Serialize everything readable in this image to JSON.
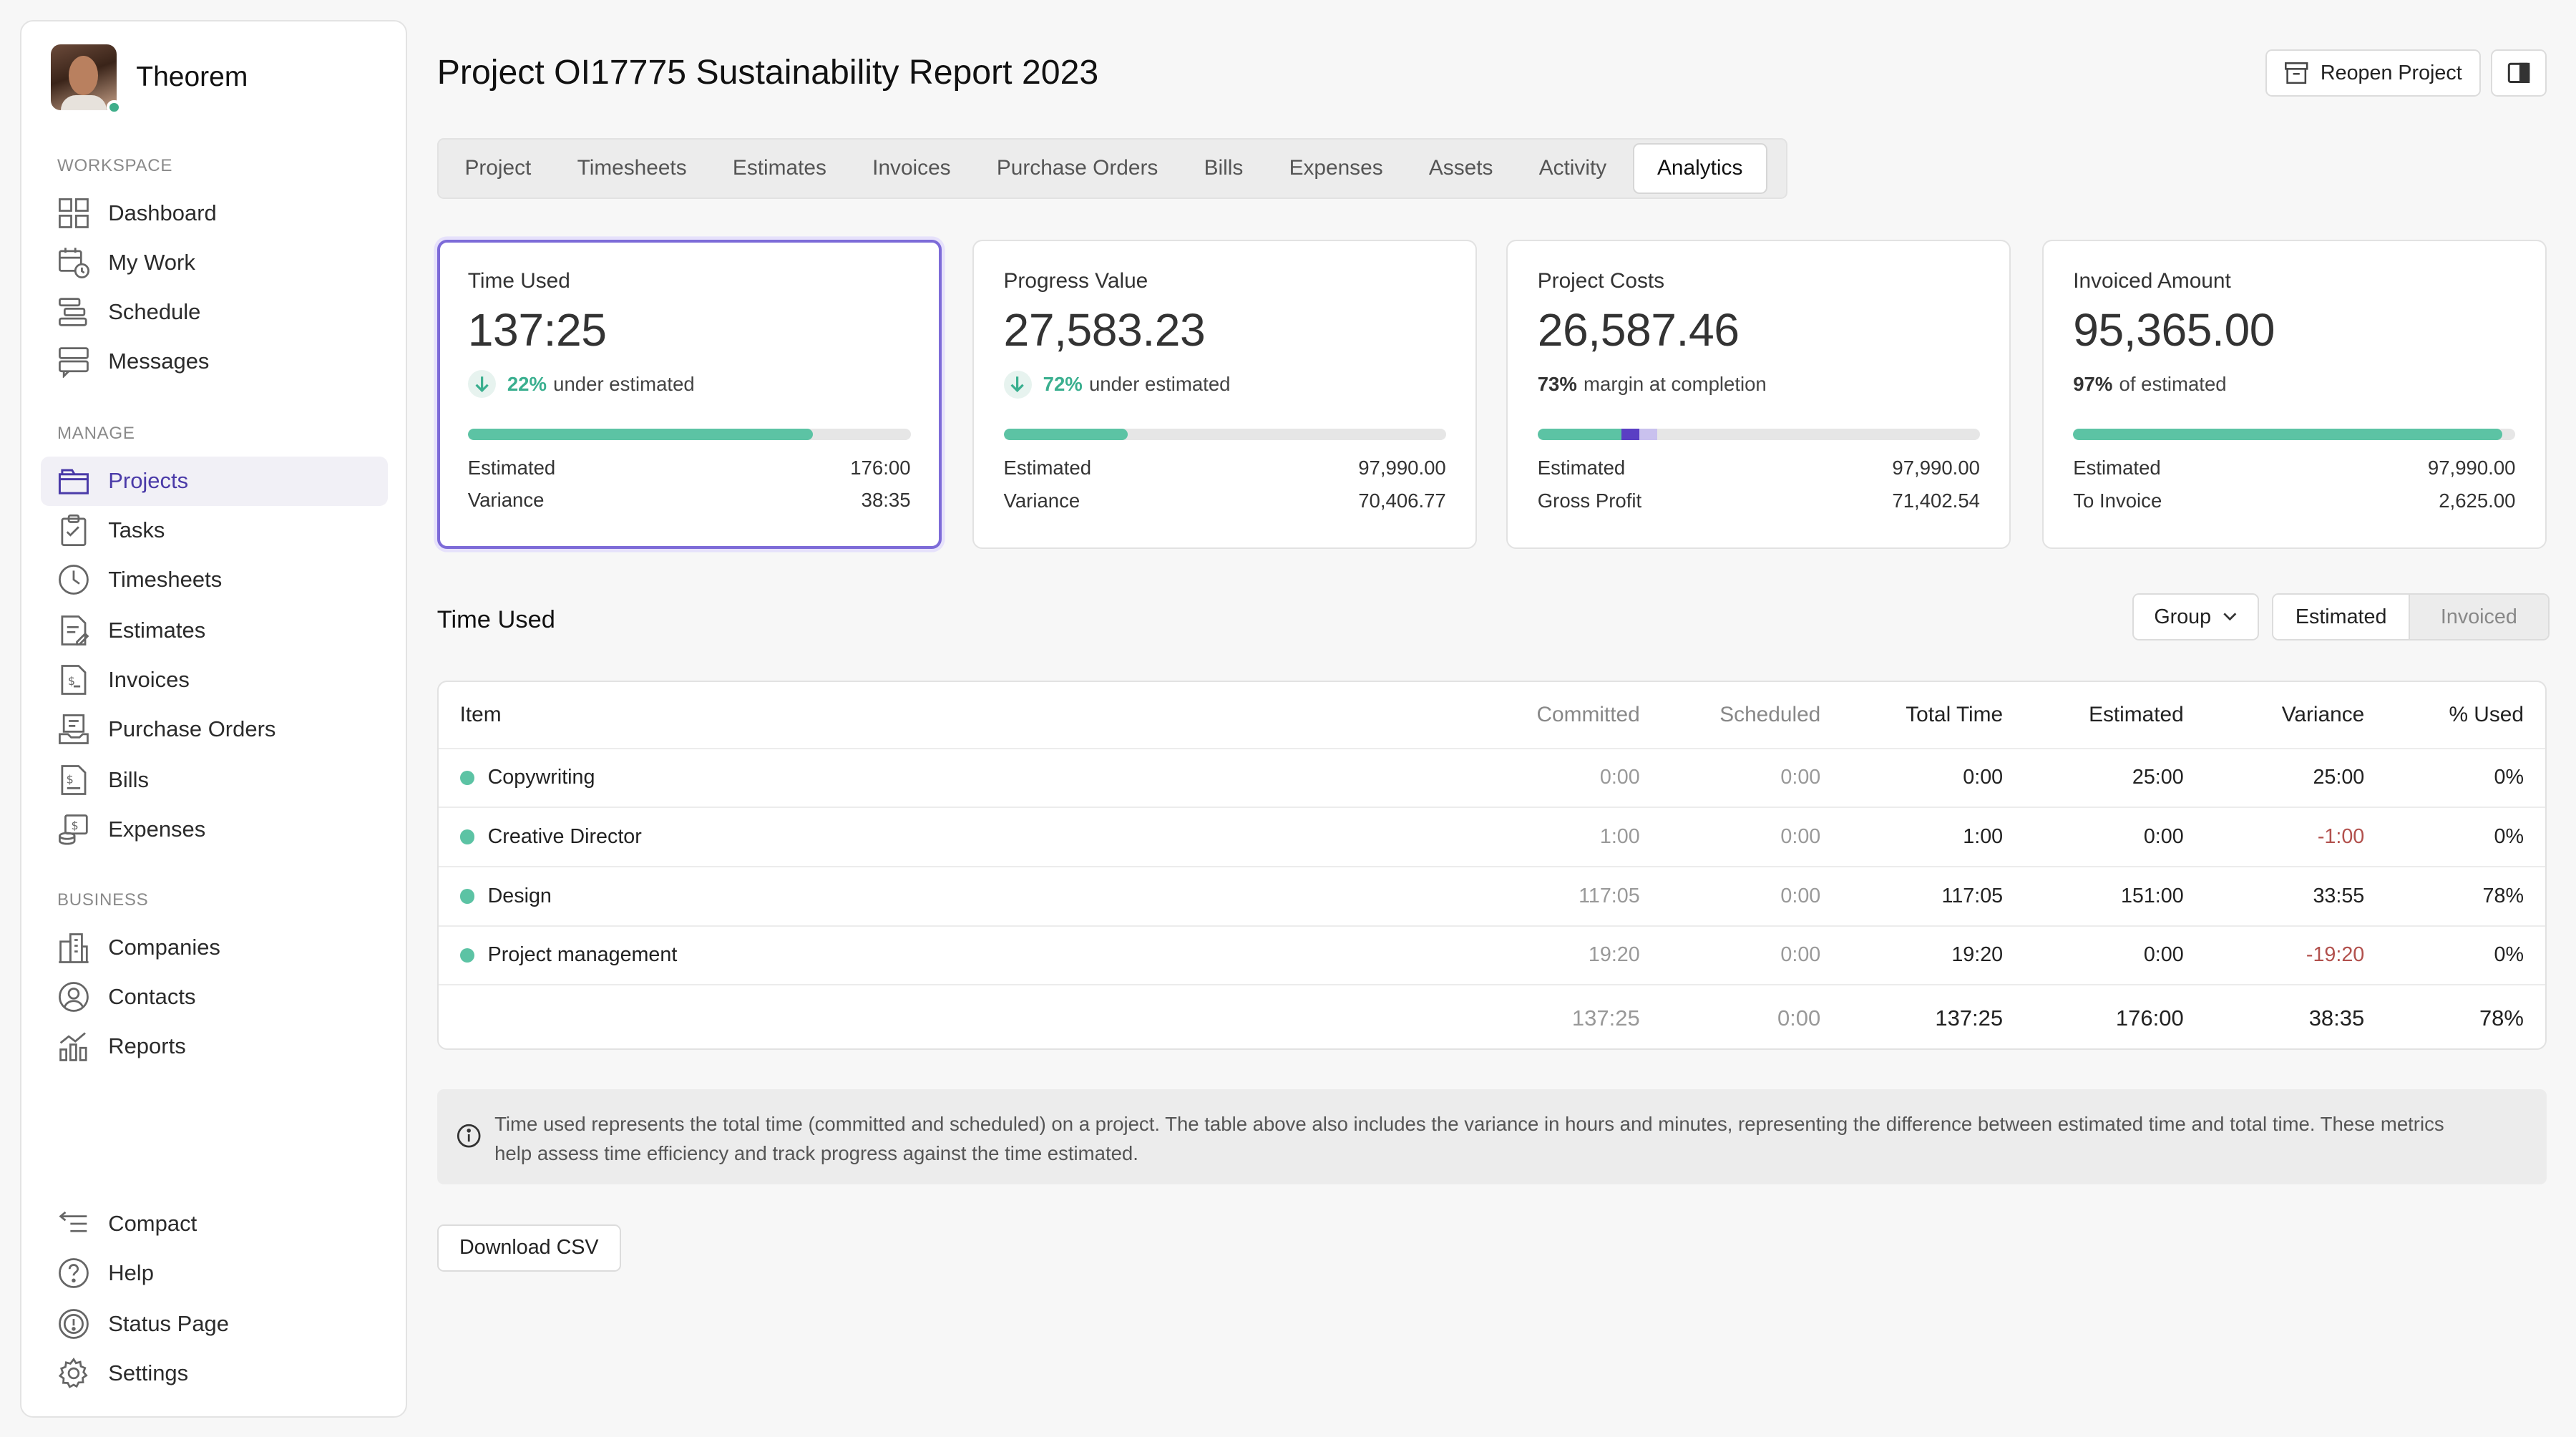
{
  "brand": {
    "name": "Theorem"
  },
  "sidebar": {
    "workspace_label": "WORKSPACE",
    "manage_label": "MANAGE",
    "business_label": "BUSINESS",
    "workspace": [
      {
        "label": "Dashboard",
        "icon": "grid-icon"
      },
      {
        "label": "My Work",
        "icon": "calendar-clock-icon"
      },
      {
        "label": "Schedule",
        "icon": "schedule-bars-icon"
      },
      {
        "label": "Messages",
        "icon": "messages-icon"
      }
    ],
    "manage": [
      {
        "label": "Projects",
        "icon": "folder-icon"
      },
      {
        "label": "Tasks",
        "icon": "clipboard-icon"
      },
      {
        "label": "Timesheets",
        "icon": "clock-icon"
      },
      {
        "label": "Estimates",
        "icon": "estimate-icon"
      },
      {
        "label": "Invoices",
        "icon": "invoice-icon"
      },
      {
        "label": "Purchase Orders",
        "icon": "purchase-order-icon"
      },
      {
        "label": "Bills",
        "icon": "bill-icon"
      },
      {
        "label": "Expenses",
        "icon": "expenses-icon"
      }
    ],
    "business": [
      {
        "label": "Companies",
        "icon": "building-icon"
      },
      {
        "label": "Contacts",
        "icon": "contact-icon"
      },
      {
        "label": "Reports",
        "icon": "chart-icon"
      }
    ],
    "footer": [
      {
        "label": "Compact",
        "icon": "compact-icon"
      },
      {
        "label": "Help",
        "icon": "help-icon"
      },
      {
        "label": "Status Page",
        "icon": "status-icon"
      },
      {
        "label": "Settings",
        "icon": "gear-icon"
      }
    ]
  },
  "header": {
    "title": "Project OI17775 Sustainability Report 2023",
    "reopen_label": "Reopen Project"
  },
  "tabs": [
    "Project",
    "Timesheets",
    "Estimates",
    "Invoices",
    "Purchase Orders",
    "Bills",
    "Expenses",
    "Assets",
    "Activity",
    "Analytics"
  ],
  "active_tab": "Analytics",
  "cards": {
    "time_used": {
      "title": "Time Used",
      "value": "137:25",
      "pct": "22%",
      "sub": "under estimated",
      "progress": 0.78,
      "k1": "Estimated",
      "v1": "176:00",
      "k2": "Variance",
      "v2": "38:35"
    },
    "progress_value": {
      "title": "Progress Value",
      "value": "27,583.23",
      "pct": "72%",
      "sub": "under estimated",
      "progress": 0.28,
      "k1": "Estimated",
      "v1": "97,990.00",
      "k2": "Variance",
      "v2": "70,406.77"
    },
    "project_costs": {
      "title": "Project Costs",
      "value": "26,587.46",
      "pct": "73%",
      "sub": "margin at completion",
      "progress_green": 0.19,
      "progress_purple": 0.04,
      "progress_light": 0.04,
      "k1": "Estimated",
      "v1": "97,990.00",
      "k2": "Gross Profit",
      "v2": "71,402.54"
    },
    "invoiced_amount": {
      "title": "Invoiced Amount",
      "value": "95,365.00",
      "pct": "97%",
      "sub": "of estimated",
      "progress": 0.97,
      "k1": "Estimated",
      "v1": "97,990.00",
      "k2": "To Invoice",
      "v2": "2,625.00"
    }
  },
  "colors": {
    "accent": "#7d6bd8",
    "green": "#5cc3a4",
    "purple": "#5a3fc4",
    "negative": "#b2514d"
  },
  "time_used": {
    "title": "Time Used",
    "group_label": "Group",
    "toggle_estimated": "Estimated",
    "toggle_invoiced": "Invoiced",
    "columns": [
      "Item",
      "Committed",
      "Scheduled",
      "Total Time",
      "Estimated",
      "Variance",
      "% Used"
    ],
    "rows": [
      {
        "item": "Copywriting",
        "committed": "0:00",
        "scheduled": "0:00",
        "total": "0:00",
        "estimated": "25:00",
        "variance": "25:00",
        "used": "0%"
      },
      {
        "item": "Creative Director",
        "committed": "1:00",
        "scheduled": "0:00",
        "total": "1:00",
        "estimated": "0:00",
        "variance": "-1:00",
        "used": "0%"
      },
      {
        "item": "Design",
        "committed": "117:05",
        "scheduled": "0:00",
        "total": "117:05",
        "estimated": "151:00",
        "variance": "33:55",
        "used": "78%"
      },
      {
        "item": "Project management",
        "committed": "19:20",
        "scheduled": "0:00",
        "total": "19:20",
        "estimated": "0:00",
        "variance": "-19:20",
        "used": "0%"
      }
    ],
    "totals": {
      "committed": "137:25",
      "scheduled": "0:00",
      "total": "137:25",
      "estimated": "176:00",
      "variance": "38:35",
      "used": "78%"
    },
    "info": "Time used represents the total time (committed and scheduled) on a project. The table above also includes the variance in hours and minutes, representing the difference between estimated time and total time. These metrics help assess time efficiency and track progress against the time estimated.",
    "download_label": "Download CSV"
  }
}
